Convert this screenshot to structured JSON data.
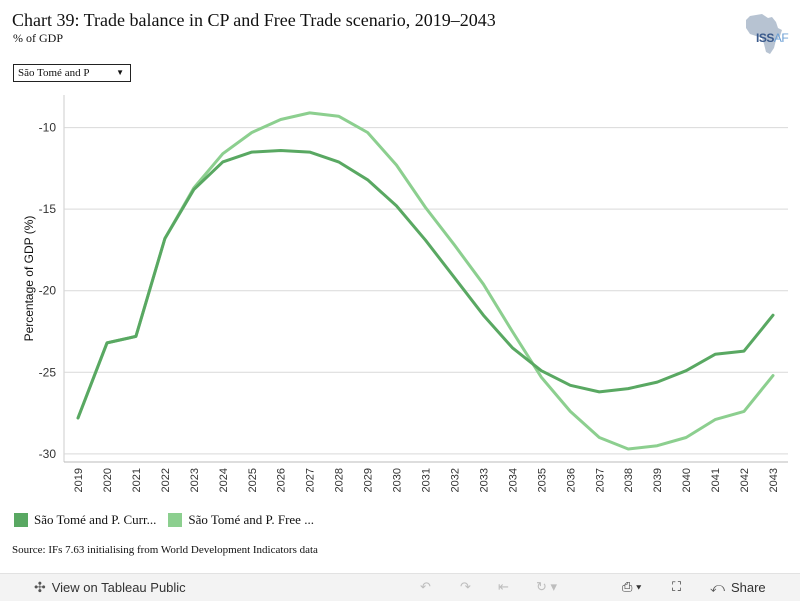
{
  "header": {
    "title": "Chart 39: Trade balance in CP and Free Trade scenario, 2019–2043",
    "subtitle": "% of GDP",
    "logo_iss": "ISS",
    "logo_af": "AF"
  },
  "filter": {
    "selected": "São Tomé and P"
  },
  "colors": {
    "current_path": "#59a862",
    "free_trade": "#8ccf8f",
    "grid": "#d9d9d9"
  },
  "chart_data": {
    "type": "line",
    "title": "Chart 39: Trade balance in CP and Free Trade scenario, 2019–2043",
    "subtitle": "% of GDP",
    "xlabel": "",
    "ylabel": "Percentage of GDP (%)",
    "ylim": [
      -30.5,
      -8
    ],
    "yticks": [
      -10,
      -15,
      -20,
      -25,
      -30
    ],
    "ytick_labels": [
      "-10",
      "-15",
      "-20",
      "-25",
      "-30"
    ],
    "grid": true,
    "legend_placement": "bottom-left",
    "x": [
      "2019",
      "2020",
      "2021",
      "2022",
      "2023",
      "2024",
      "2025",
      "2026",
      "2027",
      "2028",
      "2029",
      "2030",
      "2031",
      "2032",
      "2033",
      "2034",
      "2035",
      "2036",
      "2037",
      "2038",
      "2039",
      "2040",
      "2041",
      "2042",
      "2043"
    ],
    "series": [
      {
        "name": "São Tomé and P. Curr...",
        "color": "#59a862",
        "values": [
          -27.8,
          -23.2,
          -22.8,
          -16.8,
          -13.8,
          -12.1,
          -11.5,
          -11.4,
          -11.5,
          -12.1,
          -13.2,
          -14.8,
          -16.9,
          -19.2,
          -21.5,
          -23.5,
          -24.9,
          -25.8,
          -26.2,
          -26.0,
          -25.6,
          -24.9,
          -23.9,
          -23.7,
          -21.5
        ]
      },
      {
        "name": "São Tomé and P. Free ...",
        "color": "#8ccf8f",
        "values": [
          -27.8,
          -23.2,
          -22.8,
          -16.8,
          -13.7,
          -11.6,
          -10.3,
          -9.5,
          -9.1,
          -9.3,
          -10.3,
          -12.3,
          -14.9,
          -17.2,
          -19.6,
          -22.5,
          -25.3,
          -27.4,
          -29.0,
          -29.7,
          -29.5,
          -29.0,
          -27.9,
          -27.4,
          -25.2
        ]
      }
    ]
  },
  "source": "Source: IFs 7.63 initialising from World Development Indicators data",
  "toolbar": {
    "view_label": "View on Tableau Public",
    "share_label": "Share"
  },
  "icons": {
    "tableau": "tableau-icon",
    "undo": "undo-icon",
    "redo": "redo-icon",
    "revert": "revert-icon",
    "refresh": "refresh-icon",
    "download": "download-icon",
    "fullscreen": "fullscreen-icon",
    "share": "share-icon"
  }
}
